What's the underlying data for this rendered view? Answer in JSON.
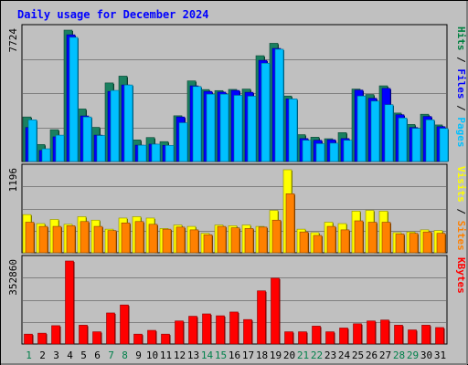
{
  "chart_data": {
    "title": "Daily usage for December 2024",
    "x": [
      1,
      2,
      3,
      4,
      5,
      6,
      7,
      8,
      9,
      10,
      11,
      12,
      13,
      14,
      15,
      16,
      17,
      18,
      19,
      20,
      21,
      22,
      23,
      24,
      25,
      26,
      27,
      28,
      29,
      30,
      31
    ],
    "weekend_days": [
      1,
      7,
      8,
      14,
      15,
      21,
      22,
      28,
      29
    ],
    "panels": [
      {
        "name": "hits-files-pages",
        "type": "bar",
        "ymax_label": "7724",
        "ylim": [
          0,
          7724
        ],
        "legend": [
          {
            "label": "Pages",
            "color": "#00c0ff"
          },
          {
            "label": "Files",
            "color": "#0000ff"
          },
          {
            "label": "Hits",
            "color": "#008040"
          }
        ],
        "series": [
          {
            "name": "Hits",
            "color": "#1a8060",
            "values": [
              2620,
              1000,
              1870,
              7724,
              3090,
              2010,
              4620,
              5020,
              1270,
              1410,
              1170,
              2690,
              4740,
              4230,
              4170,
              4240,
              4260,
              6220,
              6950,
              3850,
              1580,
              1430,
              1340,
              1700,
              4260,
              3940,
              4450,
              2850,
              2180,
              2780,
              2150
            ]
          },
          {
            "name": "Files",
            "color": "#0000ff",
            "values": [
              2000,
              650,
              1450,
              7450,
              2680,
              1550,
              4120,
              4500,
              960,
              1020,
              950,
              2620,
              4450,
              4120,
              4080,
              4180,
              4070,
              5950,
              6650,
              3680,
              1350,
              1250,
              1280,
              1350,
              4200,
              3720,
              4300,
              2750,
              2000,
              2650,
              2050
            ]
          },
          {
            "name": "Pages",
            "color": "#00c0ff",
            "values": [
              2450,
              750,
              1550,
              7300,
              2620,
              1530,
              4180,
              4500,
              960,
              1020,
              950,
              2280,
              4410,
              3960,
              3960,
              3890,
              3840,
              5780,
              6600,
              3680,
              1250,
              1050,
              1080,
              1250,
              3850,
              3550,
              3340,
              2560,
              1950,
              2450,
              1950
            ]
          }
        ]
      },
      {
        "name": "visits-sites",
        "type": "bar",
        "ymax_label": "1196",
        "ylim": [
          0,
          1196
        ],
        "legend": [
          {
            "label": "Sites",
            "color": "#ff8000"
          },
          {
            "label": "Visits",
            "color": "#ffff00"
          }
        ],
        "series": [
          {
            "name": "Visits",
            "color": "#ffff00",
            "values": [
              550,
              420,
              480,
              410,
              520,
              470,
              340,
              500,
              520,
              500,
              350,
              400,
              380,
              280,
              400,
              390,
              400,
              380,
              610,
              1196,
              340,
              290,
              440,
              420,
              600,
              610,
              600,
              290,
              300,
              330,
              320
            ]
          },
          {
            "name": "Sites",
            "color": "#ff8000",
            "values": [
              440,
              380,
              380,
              390,
              450,
              380,
              320,
              430,
              450,
              410,
              340,
              370,
              330,
              260,
              380,
              360,
              350,
              370,
              470,
              850,
              300,
              250,
              380,
              330,
              460,
              440,
              440,
              270,
              280,
              300,
              280
            ]
          }
        ]
      },
      {
        "name": "kbytes",
        "type": "bar",
        "ymax_label": "352860",
        "ylim": [
          0,
          352860
        ],
        "legend": [
          {
            "label": "KBytes",
            "color": "#ff0000"
          }
        ],
        "series": [
          {
            "name": "KBytes",
            "color": "#ff0000",
            "values": [
              42000,
              46000,
              78000,
              352860,
              80000,
              52000,
              132000,
              166000,
              42000,
              58000,
              42000,
              98000,
              118000,
              128000,
              120000,
              136000,
              104000,
              226000,
              280000,
              52000,
              52000,
              76000,
              52000,
              68000,
              86000,
              98000,
              102000,
              80000,
              60000,
              80000,
              70000
            ]
          }
        ]
      }
    ]
  }
}
